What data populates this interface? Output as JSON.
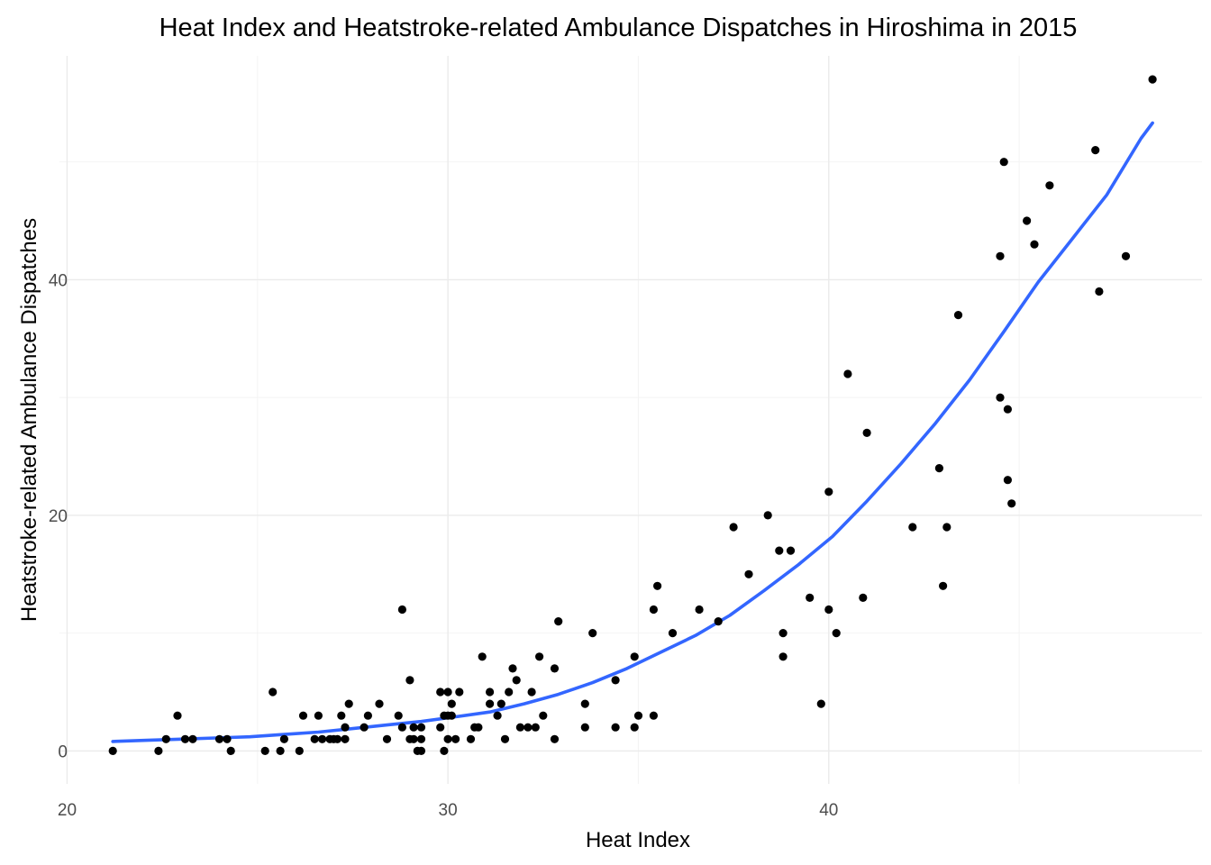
{
  "chart_data": {
    "type": "scatter",
    "title": "Heat Index and Heatstroke-related Ambulance Dispatches in Hiroshima in 2015",
    "xlabel": "Heat Index",
    "ylabel": "Heatstroke-related Ambulance Dispatches",
    "xlim": [
      19.8,
      49.8
    ],
    "ylim": [
      -2.8,
      59
    ],
    "x_ticks": [
      20,
      30,
      40
    ],
    "y_ticks": [
      0,
      20,
      40
    ],
    "x_minor": [
      25,
      35,
      45
    ],
    "y_minor": [
      10,
      30,
      50
    ],
    "grid": true,
    "legend": "none",
    "colors": {
      "points": "#000000",
      "trend": "#3366ff"
    },
    "points": [
      [
        21.2,
        0
      ],
      [
        22.4,
        0
      ],
      [
        22.6,
        1
      ],
      [
        22.9,
        3
      ],
      [
        23.1,
        1
      ],
      [
        23.3,
        1
      ],
      [
        24.0,
        1
      ],
      [
        24.2,
        1
      ],
      [
        24.3,
        0
      ],
      [
        25.2,
        0
      ],
      [
        25.4,
        5
      ],
      [
        25.6,
        0
      ],
      [
        25.7,
        1
      ],
      [
        26.1,
        0
      ],
      [
        26.2,
        3
      ],
      [
        26.5,
        1
      ],
      [
        26.6,
        3
      ],
      [
        26.7,
        1
      ],
      [
        26.9,
        1
      ],
      [
        27.0,
        1
      ],
      [
        27.1,
        1
      ],
      [
        27.2,
        3
      ],
      [
        27.3,
        1
      ],
      [
        27.3,
        2
      ],
      [
        27.4,
        4
      ],
      [
        27.8,
        2
      ],
      [
        27.9,
        3
      ],
      [
        28.2,
        4
      ],
      [
        28.4,
        1
      ],
      [
        28.7,
        3
      ],
      [
        28.8,
        12
      ],
      [
        28.8,
        2
      ],
      [
        29.0,
        6
      ],
      [
        29.0,
        1
      ],
      [
        29.1,
        1
      ],
      [
        29.1,
        2
      ],
      [
        29.2,
        0
      ],
      [
        29.3,
        2
      ],
      [
        29.3,
        0
      ],
      [
        29.3,
        1
      ],
      [
        29.8,
        2
      ],
      [
        29.8,
        5
      ],
      [
        29.9,
        0
      ],
      [
        29.9,
        3
      ],
      [
        30.0,
        5
      ],
      [
        30.0,
        3
      ],
      [
        30.0,
        1
      ],
      [
        30.1,
        3
      ],
      [
        30.1,
        4
      ],
      [
        30.2,
        1
      ],
      [
        30.3,
        5
      ],
      [
        30.6,
        1
      ],
      [
        30.7,
        2
      ],
      [
        30.8,
        2
      ],
      [
        30.9,
        8
      ],
      [
        31.1,
        5
      ],
      [
        31.1,
        4
      ],
      [
        31.3,
        3
      ],
      [
        31.4,
        4
      ],
      [
        31.5,
        1
      ],
      [
        31.6,
        5
      ],
      [
        31.7,
        7
      ],
      [
        31.8,
        6
      ],
      [
        31.9,
        2
      ],
      [
        32.1,
        2
      ],
      [
        32.2,
        5
      ],
      [
        32.3,
        2
      ],
      [
        32.4,
        8
      ],
      [
        32.5,
        3
      ],
      [
        32.8,
        7
      ],
      [
        32.8,
        1
      ],
      [
        32.9,
        11
      ],
      [
        33.6,
        4
      ],
      [
        33.6,
        2
      ],
      [
        33.8,
        10
      ],
      [
        34.4,
        6
      ],
      [
        34.4,
        2
      ],
      [
        34.9,
        8
      ],
      [
        34.9,
        2
      ],
      [
        35.0,
        3
      ],
      [
        35.4,
        12
      ],
      [
        35.4,
        3
      ],
      [
        35.5,
        14
      ],
      [
        35.9,
        10
      ],
      [
        36.6,
        12
      ],
      [
        37.1,
        11
      ],
      [
        37.5,
        19
      ],
      [
        37.9,
        15
      ],
      [
        38.4,
        20
      ],
      [
        38.7,
        17
      ],
      [
        38.8,
        10
      ],
      [
        38.8,
        8
      ],
      [
        39.0,
        17
      ],
      [
        39.5,
        13
      ],
      [
        39.8,
        4
      ],
      [
        40.0,
        22
      ],
      [
        40.0,
        12
      ],
      [
        40.2,
        10
      ],
      [
        40.5,
        32
      ],
      [
        40.9,
        13
      ],
      [
        41.0,
        27
      ],
      [
        42.2,
        19
      ],
      [
        42.9,
        24
      ],
      [
        43.0,
        14
      ],
      [
        43.1,
        19
      ],
      [
        43.4,
        37
      ],
      [
        44.5,
        30
      ],
      [
        44.5,
        42
      ],
      [
        44.6,
        50
      ],
      [
        44.7,
        29
      ],
      [
        44.7,
        23
      ],
      [
        44.8,
        21
      ],
      [
        45.2,
        45
      ],
      [
        45.4,
        43
      ],
      [
        45.8,
        48
      ],
      [
        47.0,
        51
      ],
      [
        47.1,
        39
      ],
      [
        47.8,
        42
      ],
      [
        48.5,
        57
      ]
    ],
    "trend_line": {
      "x": [
        21.2,
        22.1,
        23.0,
        23.9,
        24.8,
        25.7,
        26.6,
        27.5,
        28.4,
        29.3,
        30.2,
        31.1,
        32.0,
        32.9,
        33.8,
        34.7,
        35.6,
        36.5,
        37.4,
        38.3,
        39.2,
        40.1,
        41.0,
        41.9,
        42.8,
        43.7,
        44.6,
        45.5,
        46.4,
        47.3,
        48.2,
        48.5
      ],
      "y": [
        0.8,
        0.9,
        1.0,
        1.1,
        1.2,
        1.4,
        1.6,
        1.9,
        2.2,
        2.5,
        2.9,
        3.3,
        4.0,
        4.8,
        5.8,
        7.0,
        8.4,
        9.8,
        11.5,
        13.6,
        15.8,
        18.2,
        21.2,
        24.4,
        27.8,
        31.5,
        35.6,
        39.8,
        43.5,
        47.2,
        52.0,
        53.3
      ]
    }
  }
}
